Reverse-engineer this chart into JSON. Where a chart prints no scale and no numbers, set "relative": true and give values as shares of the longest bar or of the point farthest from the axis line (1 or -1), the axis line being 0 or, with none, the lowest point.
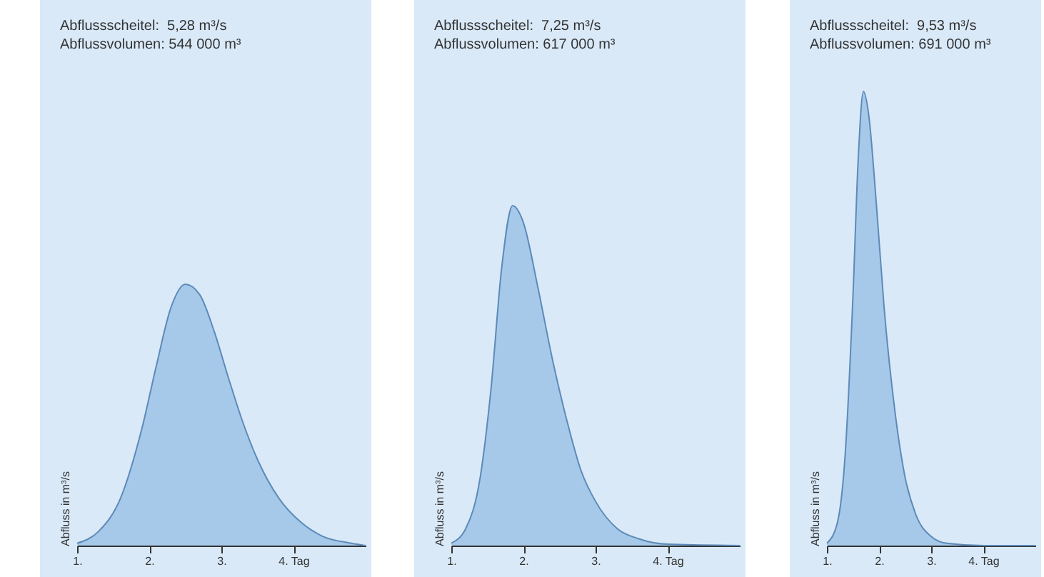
{
  "chart_data": [
    {
      "type": "area",
      "relative": true,
      "color": "#9cc3e6",
      "ylabel": "Abfluss in m³/s",
      "annotations": [
        "Abflussscheitel:  5,28 m³/s",
        "Abflussvolumen: 544 000 m³"
      ],
      "xlim": [
        1,
        5
      ],
      "xticks": [
        {
          "value": 1,
          "label": "1."
        },
        {
          "value": 2,
          "label": "2."
        },
        {
          "value": 3,
          "label": "3."
        },
        {
          "value": 4,
          "label": "4. Tag"
        }
      ],
      "x": [
        1.0,
        1.3,
        1.6,
        1.9,
        2.1,
        2.3,
        2.5,
        2.7,
        2.9,
        3.1,
        3.3,
        3.5,
        3.8,
        4.1,
        4.4,
        4.8,
        5.0
      ],
      "values": [
        0.009,
        0.055,
        0.18,
        0.45,
        0.69,
        0.91,
        1.0,
        0.96,
        0.82,
        0.64,
        0.47,
        0.33,
        0.18,
        0.09,
        0.036,
        0.009,
        0.0
      ]
    },
    {
      "type": "area",
      "relative": true,
      "color": "#9cc3e6",
      "ylabel": "Abfluss in m³/s",
      "annotations": [
        "Abflussscheitel:  7,25 m³/s",
        "Abflussvolumen: 617 000 m³"
      ],
      "xlim": [
        1,
        5
      ],
      "xticks": [
        {
          "value": 1,
          "label": "1."
        },
        {
          "value": 2,
          "label": "2."
        },
        {
          "value": 3,
          "label": "3."
        },
        {
          "value": 4,
          "label": "4. Tag"
        }
      ],
      "x": [
        1.0,
        1.2,
        1.4,
        1.55,
        1.7,
        1.85,
        2.0,
        2.2,
        2.4,
        2.6,
        2.8,
        3.0,
        3.3,
        3.6,
        4.0,
        5.0
      ],
      "values": [
        0.007,
        0.05,
        0.2,
        0.46,
        0.82,
        1.0,
        0.95,
        0.76,
        0.55,
        0.37,
        0.22,
        0.13,
        0.05,
        0.02,
        0.004,
        0.0
      ]
    },
    {
      "type": "area",
      "relative": true,
      "color": "#9cc3e6",
      "ylabel": "Abfluss in m³/s",
      "annotations": [
        "Abflussscheitel:  9,53 m³/s",
        "Abflussvolumen: 691 000 m³"
      ],
      "xlim": [
        1,
        5
      ],
      "xticks": [
        {
          "value": 1,
          "label": "1."
        },
        {
          "value": 2,
          "label": "2."
        },
        {
          "value": 3,
          "label": "3."
        },
        {
          "value": 4,
          "label": "4. Tag"
        }
      ],
      "x": [
        1.0,
        1.2,
        1.35,
        1.5,
        1.6,
        1.7,
        1.8,
        1.95,
        2.1,
        2.3,
        2.5,
        2.7,
        3.0,
        3.3,
        4.0,
        5.0
      ],
      "values": [
        0.005,
        0.05,
        0.2,
        0.55,
        0.85,
        1.0,
        0.95,
        0.75,
        0.52,
        0.3,
        0.15,
        0.07,
        0.02,
        0.005,
        0.0,
        0.0
      ]
    }
  ]
}
